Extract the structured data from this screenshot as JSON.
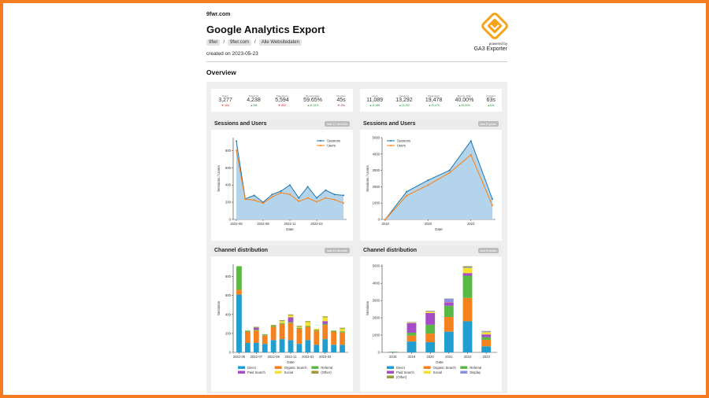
{
  "header": {
    "site": "9fwr.com",
    "title": "Google Analytics Export",
    "breadcrumbs": [
      "9fwr",
      "9fwr.com",
      "Alle Websitedaten"
    ],
    "created": "created on 2023-05-23",
    "powered_by": "powered by",
    "exporter": "GA3 Exporter"
  },
  "section_title": "Overview",
  "kpis_left": [
    {
      "label": "Users",
      "value": "3,277",
      "delta": "▼-164",
      "trend": "down"
    },
    {
      "label": "Sessions",
      "value": "4,238",
      "delta": "▲366",
      "trend": "up"
    },
    {
      "label": "Pageviews",
      "value": "5,594",
      "delta": "▼-852",
      "trend": "down"
    },
    {
      "label": "Bounce Rate",
      "value": "59.65%",
      "delta": "▲41.81%",
      "trend": "up"
    },
    {
      "label": "Duration",
      "value": "45s",
      "delta": "▼-26s",
      "trend": "down"
    }
  ],
  "kpis_right": [
    {
      "label": "Users",
      "value": "11,089",
      "delta": "▲11,089",
      "trend": "up"
    },
    {
      "label": "Sessions",
      "value": "13,292",
      "delta": "▲13,292",
      "trend": "up"
    },
    {
      "label": "Pageviews",
      "value": "19,478",
      "delta": "▲19,478",
      "trend": "up"
    },
    {
      "label": "Bounce Rate",
      "value": "40.00%",
      "delta": "▲40.00%",
      "trend": "up"
    },
    {
      "label": "Duration",
      "value": "63s",
      "delta": "▲63s",
      "trend": "up"
    }
  ],
  "cards": {
    "su_left": {
      "title": "Sessions and Users",
      "badge": "last 12 months"
    },
    "su_right": {
      "title": "Sessions and Users",
      "badge": "last 6 years"
    },
    "cd_left": {
      "title": "Channel distribution",
      "badge": "last 12 months"
    },
    "cd_right": {
      "title": "Channel distribution",
      "badge": "last 6 years"
    }
  },
  "colors": {
    "sessions": "#1f77b4",
    "users": "#ff7f0e",
    "area": "#b3d4ea"
  },
  "channel_colors": {
    "Direct": "#1f9ecf",
    "Organic Search": "#f5821f",
    "Referral": "#5ab946",
    "Paid Search": "#a64cc7",
    "Social": "#f5e22e",
    "Display": "#8c8fe0",
    "(Other)": "#9b9b3a"
  },
  "chart_data": [
    {
      "type": "line",
      "title": "Sessions and Users",
      "xlabel": "Date",
      "ylabel": "Sessions / Users",
      "x": [
        "2022-05",
        "2022-06",
        "2022-07",
        "2022-08",
        "2022-09",
        "2022-10",
        "2022-11",
        "2022-12",
        "2023-01",
        "2023-02",
        "2023-03",
        "2023-04",
        "2023-05"
      ],
      "xticks": [
        "2022-05",
        "2022-08",
        "2022-11",
        "2023-02"
      ],
      "ylim": [
        0,
        950
      ],
      "yticks": [
        0,
        200,
        400,
        600,
        800
      ],
      "legend": "top-right",
      "series": [
        {
          "name": "Sessions",
          "values": [
            910,
            240,
            280,
            200,
            290,
            330,
            400,
            250,
            380,
            250,
            340,
            290,
            280
          ]
        },
        {
          "name": "Users",
          "values": [
            800,
            235,
            225,
            190,
            260,
            310,
            290,
            210,
            250,
            205,
            250,
            230,
            190
          ]
        }
      ]
    },
    {
      "type": "line",
      "title": "Sessions and Users",
      "xlabel": "Date",
      "ylabel": "Sessions / Users",
      "x": [
        2018,
        2019,
        2020,
        2021,
        2022,
        2023
      ],
      "xticks": [
        "2018",
        "2020",
        "2022"
      ],
      "ylim": [
        0,
        5000
      ],
      "yticks": [
        0,
        1000,
        2000,
        3000,
        4000,
        5000
      ],
      "legend": "top-left",
      "series": [
        {
          "name": "Sessions",
          "values": [
            0,
            1700,
            2400,
            3000,
            4800,
            1250
          ]
        },
        {
          "name": "Users",
          "values": [
            0,
            1450,
            2100,
            2850,
            3950,
            850
          ]
        }
      ]
    },
    {
      "type": "bar",
      "title": "Channel distribution",
      "xlabel": "Date",
      "ylabel": "Sessions",
      "categories": [
        "2022-05",
        "2022-06",
        "2022-07",
        "2022-08",
        "2022-09",
        "2022-10",
        "2022-11",
        "2022-12",
        "2023-01",
        "2023-02",
        "2023-03",
        "2023-04",
        "2023-05"
      ],
      "xticks": [
        "2022-05",
        "2022-07",
        "2022-09",
        "2022-11",
        "2023-01",
        "2023-03"
      ],
      "ylim": [
        0,
        930
      ],
      "yticks": [
        0,
        200,
        400,
        600,
        800
      ],
      "series": [
        {
          "name": "Direct",
          "values": [
            610,
            100,
            100,
            90,
            130,
            140,
            130,
            90,
            130,
            80,
            140,
            80,
            80
          ]
        },
        {
          "name": "Organic Search",
          "values": [
            50,
            120,
            130,
            90,
            140,
            160,
            180,
            160,
            140,
            150,
            150,
            140,
            130
          ]
        },
        {
          "name": "Referral",
          "values": [
            250,
            10,
            10,
            10,
            10,
            10,
            10,
            10,
            10,
            10,
            10,
            10,
            10
          ]
        },
        {
          "name": "Paid Search",
          "values": [
            0,
            0,
            20,
            0,
            0,
            0,
            50,
            0,
            0,
            0,
            30,
            0,
            0
          ]
        },
        {
          "name": "Social",
          "values": [
            0,
            0,
            0,
            0,
            0,
            20,
            20,
            10,
            40,
            10,
            40,
            0,
            30
          ]
        },
        {
          "name": "(Other)",
          "values": [
            0,
            0,
            10,
            0,
            10,
            10,
            10,
            10,
            10,
            0,
            10,
            0,
            10
          ]
        }
      ]
    },
    {
      "type": "bar",
      "title": "Channel distribution",
      "xlabel": "Date",
      "ylabel": "Sessions",
      "categories": [
        "2018",
        "2019",
        "2020",
        "2021",
        "2022",
        "2023"
      ],
      "ylim": [
        0,
        5100
      ],
      "yticks": [
        0,
        1000,
        2000,
        3000,
        4000,
        5000
      ],
      "series": [
        {
          "name": "Direct",
          "values": [
            20,
            630,
            590,
            1200,
            1800,
            350
          ]
        },
        {
          "name": "Organic Search",
          "values": [
            10,
            340,
            500,
            850,
            1350,
            380
          ]
        },
        {
          "name": "Referral",
          "values": [
            10,
            170,
            510,
            650,
            1290,
            150
          ]
        },
        {
          "name": "Paid Search",
          "values": [
            0,
            550,
            680,
            200,
            150,
            160
          ]
        },
        {
          "name": "Social",
          "values": [
            0,
            20,
            80,
            10,
            300,
            130
          ]
        },
        {
          "name": "Display",
          "values": [
            0,
            30,
            40,
            200,
            50,
            50
          ]
        },
        {
          "name": "(Other)",
          "values": [
            0,
            20,
            10,
            10,
            50,
            20
          ]
        }
      ]
    }
  ]
}
